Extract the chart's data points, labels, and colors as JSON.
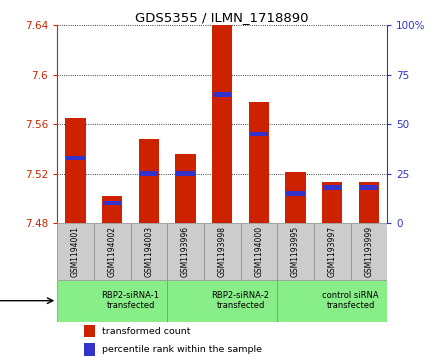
{
  "title": "GDS5355 / ILMN_1718890",
  "samples": [
    "GSM1194001",
    "GSM1194002",
    "GSM1194003",
    "GSM1193996",
    "GSM1193998",
    "GSM1194000",
    "GSM1193995",
    "GSM1193997",
    "GSM1193999"
  ],
  "transformed_counts": [
    7.565,
    7.502,
    7.548,
    7.536,
    7.641,
    7.578,
    7.521,
    7.513,
    7.513
  ],
  "percentile_ranks": [
    33,
    10,
    25,
    25,
    65,
    45,
    15,
    18,
    18
  ],
  "y_min": 7.48,
  "y_max": 7.64,
  "y_ticks": [
    7.48,
    7.52,
    7.56,
    7.6,
    7.64
  ],
  "y2_ticks": [
    0,
    25,
    50,
    75,
    100
  ],
  "bar_color": "#cc2200",
  "percentile_color": "#3333cc",
  "bar_width": 0.55,
  "groups": [
    {
      "label": "RBP2-siRNA-1\ntransfected",
      "start": 0,
      "end": 3
    },
    {
      "label": "RBP2-siRNA-2\ntransfected",
      "start": 3,
      "end": 6
    },
    {
      "label": "control siRNA\ntransfected",
      "start": 6,
      "end": 9
    }
  ],
  "group_color": "#88ee88",
  "legend_items": [
    {
      "label": "transformed count",
      "color": "#cc2200"
    },
    {
      "label": "percentile rank within the sample",
      "color": "#3333cc"
    }
  ],
  "tick_color_left": "#cc2200",
  "tick_color_right": "#3333cc",
  "sample_bg": "#cccccc",
  "spine_color": "#888888"
}
